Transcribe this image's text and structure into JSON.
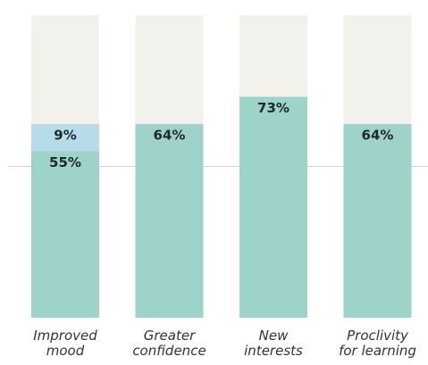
{
  "chart_data": {
    "type": "stacked_bar",
    "categories": [
      "Improved mood",
      "Greater confidence",
      "New interests",
      "Proclivity for learning"
    ],
    "series": [
      {
        "color": "#9dd3c8",
        "values": [
          55,
          64,
          73,
          64
        ],
        "value_labels": [
          "55%",
          "64%",
          "73%",
          "64%"
        ]
      },
      {
        "color": "#b6dcea",
        "values": [
          9,
          null,
          null,
          null
        ],
        "value_labels": [
          "9%",
          null,
          null,
          null
        ]
      }
    ],
    "ylim": [
      0,
      100
    ],
    "background_color": "#f3f1ec",
    "reference_line": 50
  }
}
